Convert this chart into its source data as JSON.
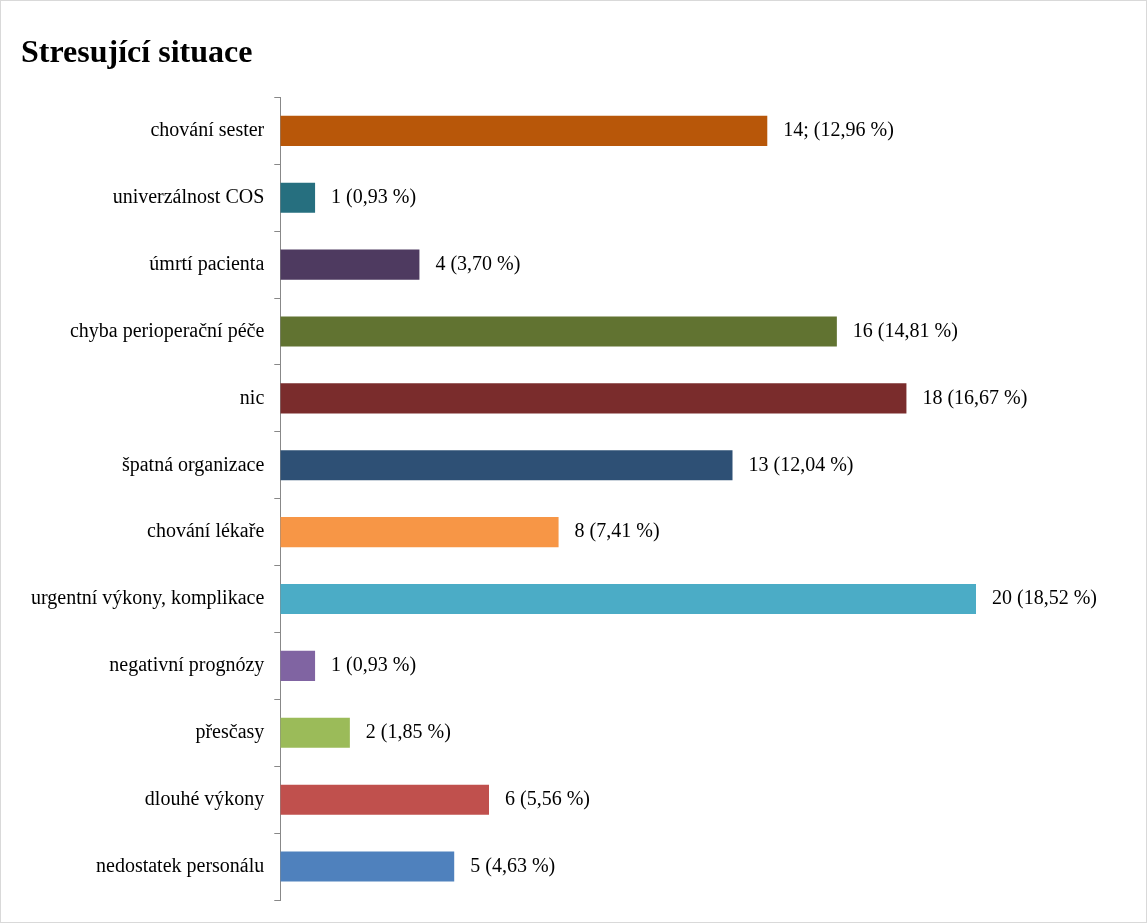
{
  "chart_data": {
    "type": "bar",
    "orientation": "horizontal",
    "title": "Stresující situace",
    "categories": [
      "chování sester",
      "univerzálnost COS",
      "úmrtí pacienta",
      "chyba perioperační péče",
      "nic",
      "špatná organizace",
      "chování lékaře",
      "urgentní výkony, komplikace",
      "negativní prognózy",
      "přesčasy",
      "dlouhé výkony",
      "nedostatek personálu"
    ],
    "values": [
      14,
      1,
      4,
      16,
      18,
      13,
      8,
      20,
      1,
      2,
      6,
      5
    ],
    "colors": [
      "#b85709",
      "#266f7f",
      "#4e3a60",
      "#617331",
      "#7a2c2c",
      "#2e5075",
      "#f79646",
      "#4bacc6",
      "#8064a2",
      "#9bbb59",
      "#c0504d",
      "#4f81bd"
    ],
    "value_labels": [
      "14; (12,96 %)",
      "1 (0,93 %)",
      "4 (3,70 %)",
      "16 (14,81 %)",
      "18 (16,67 %)",
      "13 (12,04 %)",
      "8 (7,41 %)",
      "20 (18,52 %)",
      "1 (0,93 %)",
      "2 (1,85 %)",
      "6 (5,56 %)",
      "5 (4,63 %)"
    ],
    "legend": false
  }
}
